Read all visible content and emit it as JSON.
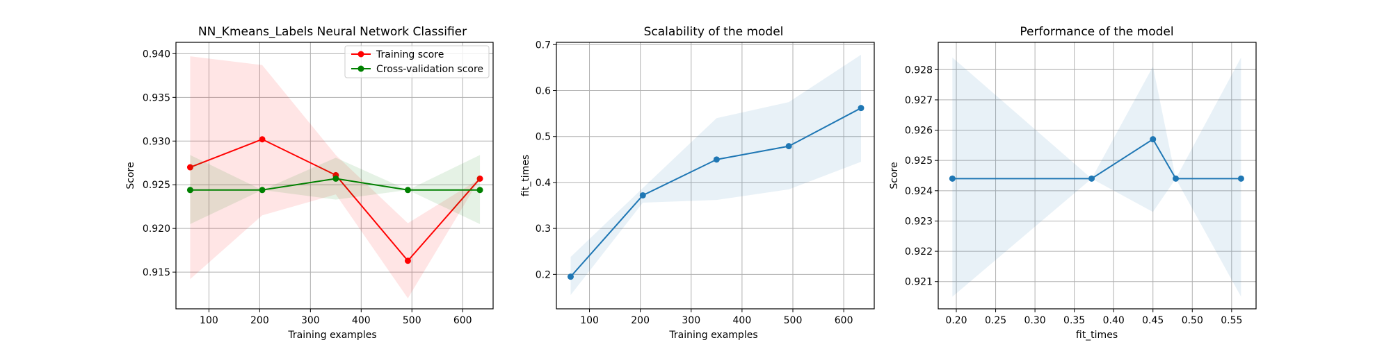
{
  "chart_data": [
    {
      "type": "line",
      "title": "NN_Kmeans_Labels Neural Network Classifier",
      "xlabel": "Training examples",
      "ylabel": "Score",
      "xlim": [
        35,
        660
      ],
      "ylim": [
        0.9108,
        0.9413
      ],
      "xticks": [
        100,
        200,
        300,
        400,
        500,
        600
      ],
      "yticks": [
        0.915,
        0.92,
        0.925,
        0.93,
        0.935,
        0.94
      ],
      "ytick_decimals": 3,
      "grid": true,
      "legend_position": "upper-right",
      "series": [
        {
          "name": "Training score",
          "color": "#ff0000",
          "x": [
            63,
            205,
            350,
            492,
            634
          ],
          "values": [
            0.927,
            0.9302,
            0.9261,
            0.9163,
            0.9257
          ],
          "band_lower": [
            0.9142,
            0.9215,
            0.9239,
            0.912,
            0.9257
          ],
          "band_upper": [
            0.9397,
            0.9387,
            0.9284,
            0.9206,
            0.9257
          ],
          "band_color": "#ff0000"
        },
        {
          "name": "Cross-validation score",
          "color": "#008000",
          "x": [
            63,
            205,
            350,
            492,
            634
          ],
          "values": [
            0.9244,
            0.9244,
            0.9257,
            0.9244,
            0.9244
          ],
          "band_lower": [
            0.9205,
            0.9244,
            0.9233,
            0.9244,
            0.9205
          ],
          "band_upper": [
            0.9284,
            0.9244,
            0.9281,
            0.9244,
            0.9284
          ],
          "band_color": "#008000"
        }
      ]
    },
    {
      "type": "line",
      "title": "Scalability of the model",
      "xlabel": "Training examples",
      "ylabel": "fit_times",
      "xlim": [
        35,
        660
      ],
      "ylim": [
        0.125,
        0.705
      ],
      "xticks": [
        100,
        200,
        300,
        400,
        500,
        600
      ],
      "yticks": [
        0.2,
        0.3,
        0.4,
        0.5,
        0.6,
        0.7
      ],
      "ytick_decimals": 1,
      "grid": true,
      "series": [
        {
          "name": "",
          "color": "#1f77b4",
          "x": [
            63,
            205,
            350,
            492,
            634
          ],
          "values": [
            0.195,
            0.372,
            0.45,
            0.479,
            0.562
          ],
          "band_lower": [
            0.155,
            0.356,
            0.362,
            0.385,
            0.445
          ],
          "band_upper": [
            0.238,
            0.388,
            0.54,
            0.575,
            0.678
          ],
          "band_color": "#1f77b4"
        }
      ]
    },
    {
      "type": "line",
      "title": "Performance of the model",
      "xlabel": "fit_times",
      "ylabel": "Score",
      "xlim": [
        0.177,
        0.5811
      ],
      "ylim": [
        0.9201,
        0.9289
      ],
      "xticks": [
        0.2,
        0.25,
        0.3,
        0.35,
        0.4,
        0.45,
        0.5,
        0.55
      ],
      "xtick_decimals": 2,
      "yticks": [
        0.921,
        0.922,
        0.923,
        0.924,
        0.925,
        0.926,
        0.927,
        0.928
      ],
      "ytick_decimals": 3,
      "grid": true,
      "series": [
        {
          "name": "",
          "color": "#1f77b4",
          "x": [
            0.195,
            0.372,
            0.45,
            0.479,
            0.562
          ],
          "values": [
            0.9244,
            0.9244,
            0.9257,
            0.9244,
            0.9244
          ],
          "band_lower": [
            0.9205,
            0.9244,
            0.9233,
            0.9244,
            0.9205
          ],
          "band_upper": [
            0.9284,
            0.9244,
            0.9281,
            0.9244,
            0.9284
          ],
          "band_color": "#1f77b4"
        }
      ]
    }
  ]
}
